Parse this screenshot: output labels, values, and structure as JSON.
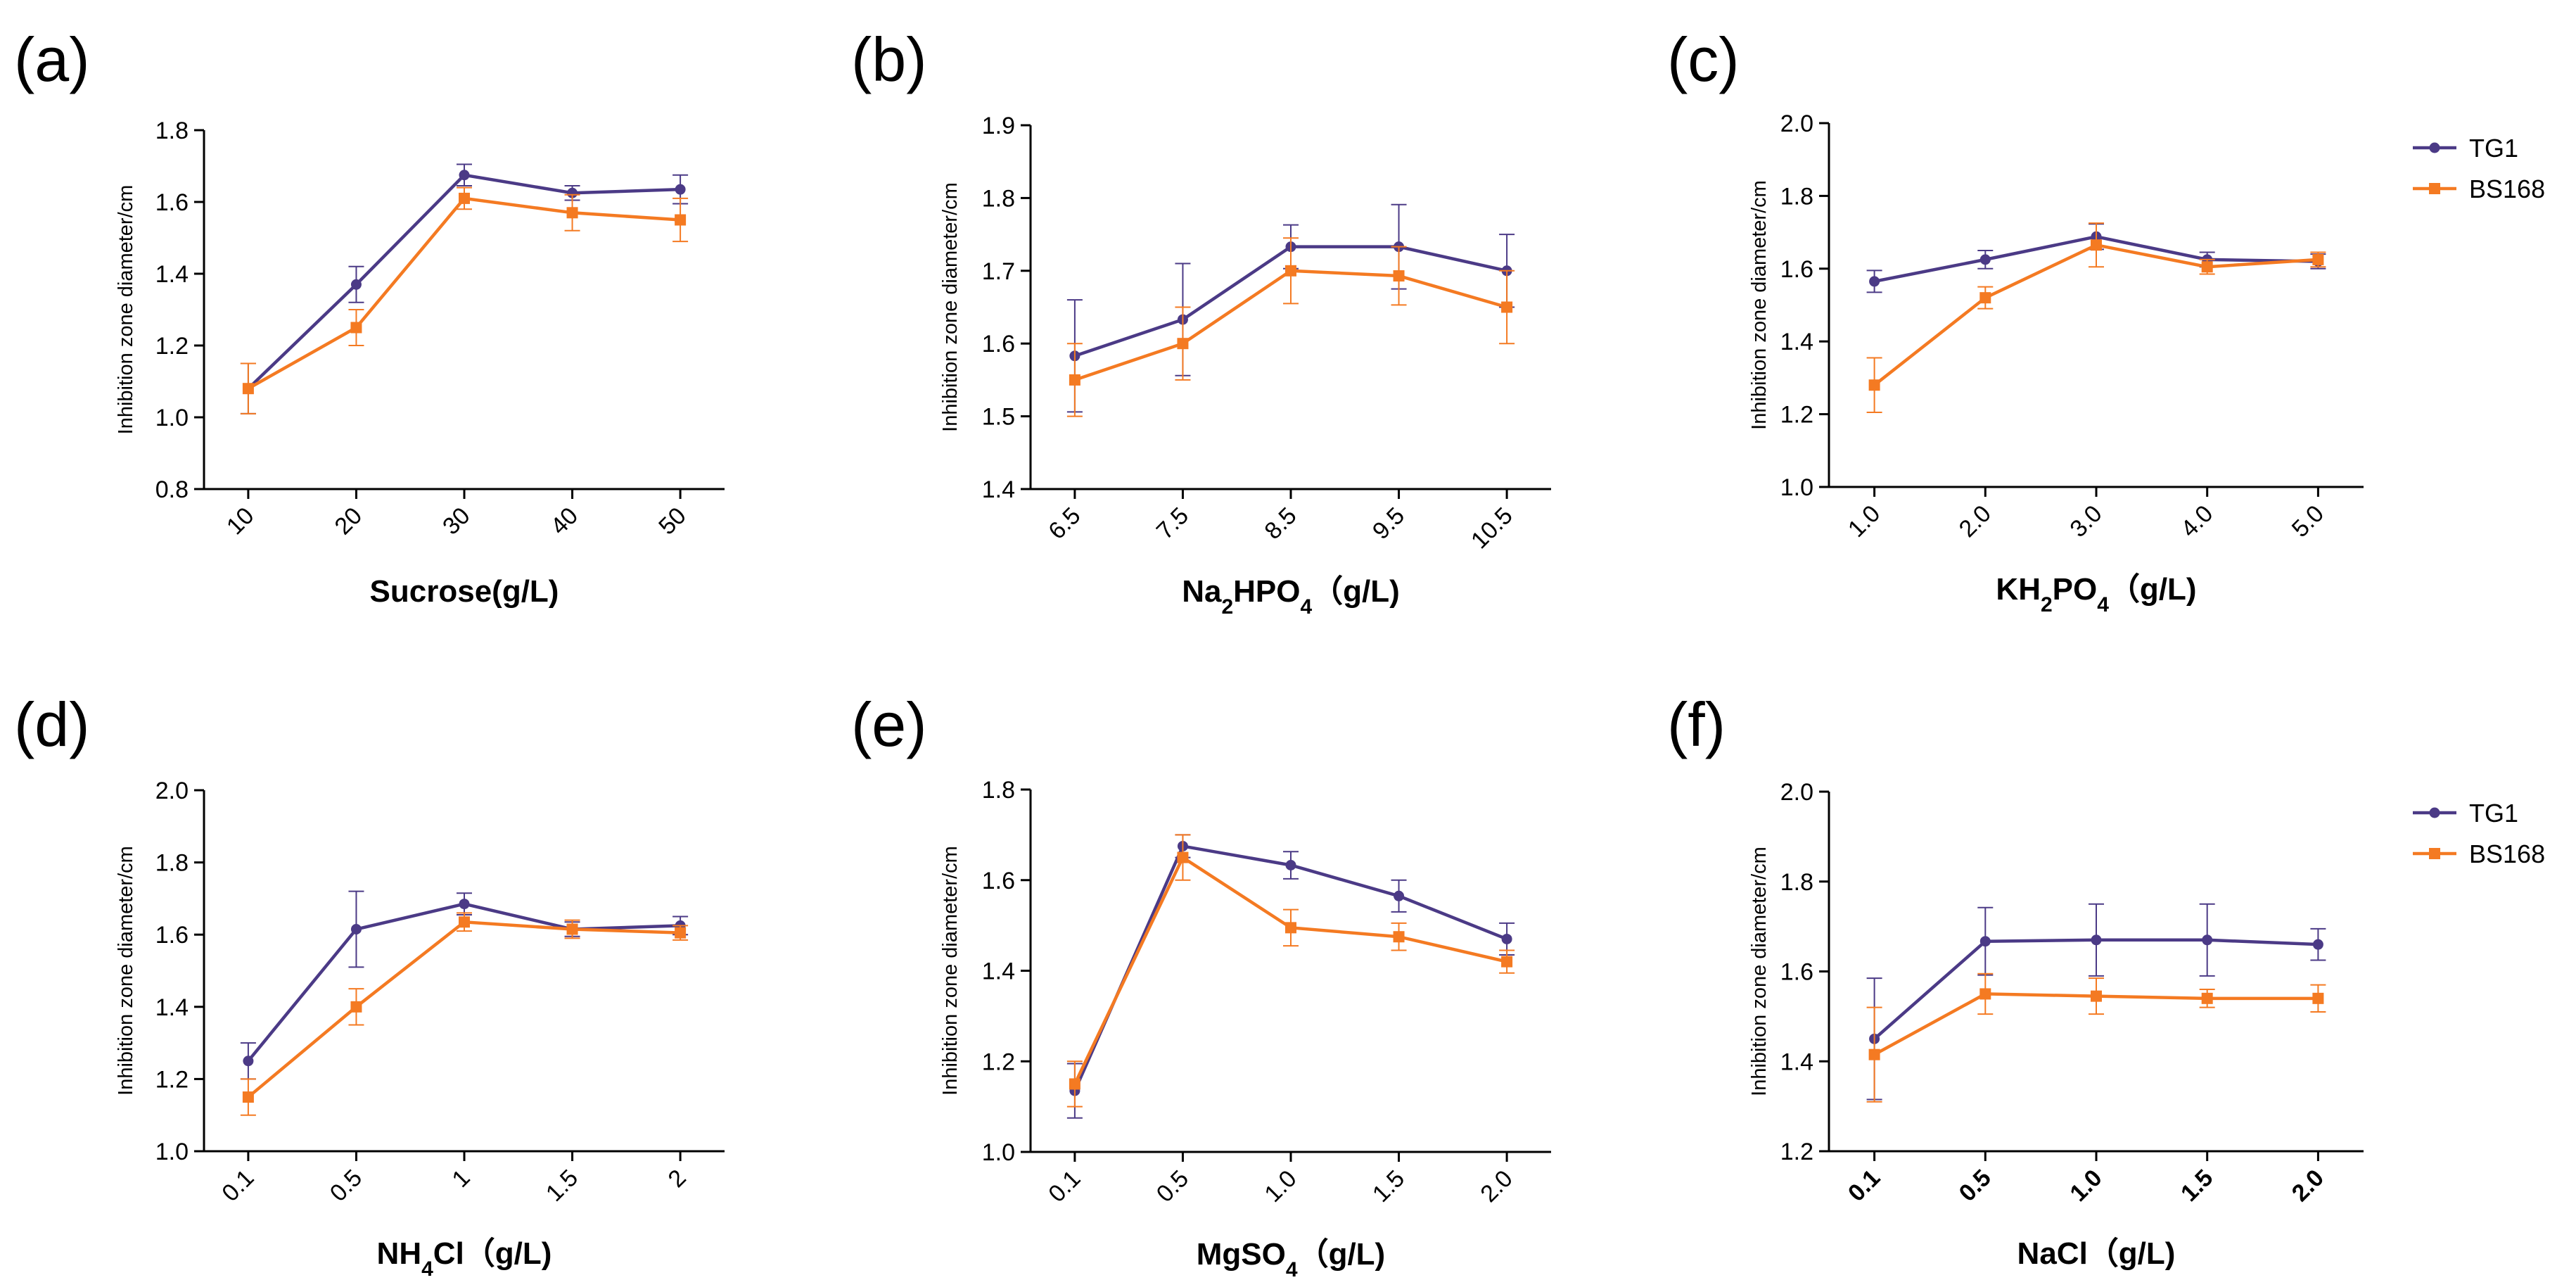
{
  "colors": {
    "TG1": "#4b3a86",
    "BS168": "#f47a22"
  },
  "legend": [
    {
      "name": "TG1",
      "color": "#4b3a86"
    },
    {
      "name": "BS168",
      "color": "#f47a22"
    }
  ],
  "chart_data": [
    {
      "panel": "(a)",
      "type": "line",
      "legend": false,
      "categories": [
        "10",
        "20",
        "30",
        "40",
        "50"
      ],
      "xlabel_parts": [
        [
          "Sucrose(g/L)",
          ""
        ]
      ],
      "ylabel": "Inhibition zone diameter/cm",
      "ylim": [
        0.8,
        1.8
      ],
      "yticks": [
        "0.8",
        "1.0",
        "1.2",
        "1.4",
        "1.6",
        "1.8"
      ],
      "series": [
        {
          "name": "TG1",
          "values": [
            1.08,
            1.37,
            1.675,
            1.625,
            1.635
          ],
          "errors": [
            0.07,
            0.05,
            0.03,
            0.02,
            0.04
          ]
        },
        {
          "name": "BS168",
          "values": [
            1.08,
            1.25,
            1.61,
            1.57,
            1.55
          ],
          "errors": [
            0.07,
            0.05,
            0.03,
            0.05,
            0.06
          ]
        }
      ]
    },
    {
      "panel": "(b)",
      "type": "line",
      "legend": false,
      "categories": [
        "6.5",
        "7.5",
        "8.5",
        "9.5",
        "10.5"
      ],
      "xlabel_parts": [
        [
          "Na",
          ""
        ],
        [
          "2",
          "sub"
        ],
        [
          "HPO",
          ""
        ],
        [
          "4",
          "sub"
        ],
        [
          "（g/L)",
          ""
        ]
      ],
      "ylabel": "Inhibition zone diameter/cm",
      "ylim": [
        1.4,
        1.9
      ],
      "yticks": [
        "1.4",
        "1.5",
        "1.6",
        "1.7",
        "1.8",
        "1.9"
      ],
      "series": [
        {
          "name": "TG1",
          "values": [
            1.583,
            1.633,
            1.733,
            1.733,
            1.7
          ],
          "errors": [
            0.077,
            0.077,
            0.03,
            0.058,
            0.05
          ]
        },
        {
          "name": "BS168",
          "values": [
            1.55,
            1.6,
            1.7,
            1.693,
            1.65
          ],
          "errors": [
            0.05,
            0.05,
            0.045,
            0.04,
            0.05
          ]
        }
      ]
    },
    {
      "panel": "(c)",
      "type": "line",
      "legend": true,
      "categories": [
        "1.0",
        "2.0",
        "3.0",
        "4.0",
        "5.0"
      ],
      "xlabel_parts": [
        [
          "KH",
          ""
        ],
        [
          "2",
          "sub"
        ],
        [
          "PO",
          ""
        ],
        [
          "4",
          "sub"
        ],
        [
          "（g/L)",
          ""
        ]
      ],
      "ylabel": "Inhibition zone diameter/cm",
      "ylim": [
        1.0,
        2.0
      ],
      "yticks": [
        "1.0",
        "1.2",
        "1.4",
        "1.6",
        "1.8",
        "2.0"
      ],
      "series": [
        {
          "name": "TG1",
          "values": [
            1.565,
            1.625,
            1.688,
            1.625,
            1.62
          ],
          "errors": [
            0.03,
            0.025,
            0.035,
            0.02,
            0.02
          ]
        },
        {
          "name": "BS168",
          "values": [
            1.28,
            1.52,
            1.665,
            1.605,
            1.625
          ],
          "errors": [
            0.075,
            0.03,
            0.06,
            0.02,
            0.02
          ]
        }
      ]
    },
    {
      "panel": "(d)",
      "type": "line",
      "legend": false,
      "categories": [
        "0.1",
        "0.5",
        "1",
        "1.5",
        "2"
      ],
      "xlabel_parts": [
        [
          "NH",
          ""
        ],
        [
          "4",
          "sub"
        ],
        [
          "Cl（g/L)",
          ""
        ]
      ],
      "ylabel": "Inhibition zone diameter/cm",
      "ylim": [
        1.0,
        2.0
      ],
      "yticks": [
        "1.0",
        "1.2",
        "1.4",
        "1.6",
        "1.8",
        "2.0"
      ],
      "series": [
        {
          "name": "TG1",
          "values": [
            1.25,
            1.615,
            1.685,
            1.615,
            1.625
          ],
          "errors": [
            0.05,
            0.105,
            0.03,
            0.02,
            0.025
          ]
        },
        {
          "name": "BS168",
          "values": [
            1.15,
            1.4,
            1.635,
            1.615,
            1.605
          ],
          "errors": [
            0.05,
            0.05,
            0.025,
            0.025,
            0.02
          ]
        }
      ]
    },
    {
      "panel": "(e)",
      "type": "line",
      "legend": false,
      "categories": [
        "0.1",
        "0.5",
        "1.0",
        "1.5",
        "2.0"
      ],
      "xlabel_parts": [
        [
          "MgSO",
          ""
        ],
        [
          "4",
          "sub"
        ],
        [
          "（g/L)",
          ""
        ]
      ],
      "ylabel": "Inhibition zone diameter/cm",
      "ylim": [
        1.0,
        1.8
      ],
      "yticks": [
        "1.0",
        "1.2",
        "1.4",
        "1.6",
        "1.8"
      ],
      "series": [
        {
          "name": "TG1",
          "values": [
            1.135,
            1.675,
            1.633,
            1.565,
            1.47
          ],
          "errors": [
            0.06,
            0.025,
            0.03,
            0.035,
            0.035
          ]
        },
        {
          "name": "BS168",
          "values": [
            1.15,
            1.65,
            1.495,
            1.475,
            1.42
          ],
          "errors": [
            0.05,
            0.05,
            0.04,
            0.03,
            0.025
          ]
        }
      ]
    },
    {
      "panel": "(f)",
      "type": "line",
      "legend": true,
      "categories": [
        "0.1",
        "0.5",
        "1.0",
        "1.5",
        "2.0"
      ],
      "xtick_bold": true,
      "xlabel_parts": [
        [
          "NaCl（g/L)",
          ""
        ]
      ],
      "ylabel": "Inhibition zone diameter/cm",
      "ylim": [
        1.2,
        2.0
      ],
      "yticks": [
        "1.2",
        "1.4",
        "1.6",
        "1.8",
        "2.0"
      ],
      "series": [
        {
          "name": "TG1",
          "values": [
            1.45,
            1.667,
            1.67,
            1.67,
            1.66
          ],
          "errors": [
            0.135,
            0.075,
            0.08,
            0.08,
            0.035
          ]
        },
        {
          "name": "BS168",
          "values": [
            1.415,
            1.55,
            1.545,
            1.54,
            1.54
          ],
          "errors": [
            0.105,
            0.045,
            0.04,
            0.02,
            0.03
          ]
        }
      ]
    }
  ]
}
